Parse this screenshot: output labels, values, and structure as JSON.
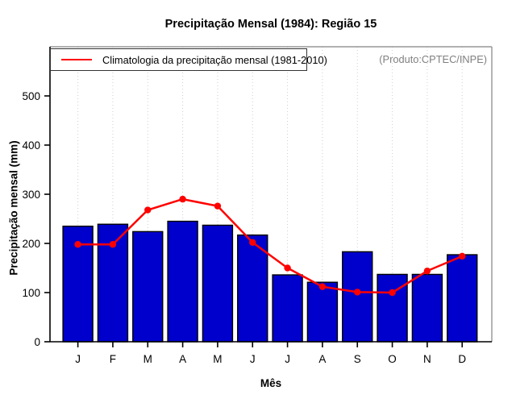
{
  "figure": {
    "annotation": "(Produto:CPTEC/INPE)"
  },
  "colors": {
    "bar_fill": "#0000CD",
    "bar_border": "#000000",
    "line": "#FF0000",
    "grid": "#CFCFCF",
    "box_border": "#828282",
    "axis": "#000000",
    "annotation_text": "#808080"
  },
  "chart_data": {
    "type": "bar",
    "title": "Precipitação Mensal (1984): Região 15",
    "xlabel": "Mês",
    "ylabel": "Precipitação mensal (mm)",
    "categories": [
      "J",
      "F",
      "M",
      "A",
      "M",
      "J",
      "J",
      "A",
      "S",
      "O",
      "N",
      "D"
    ],
    "yticks": [
      0,
      100,
      200,
      300,
      400,
      500
    ],
    "ylim": [
      0,
      600
    ],
    "grid": "vertical dotted gridlines at each month",
    "legend_position": "top-left inside plot",
    "annotation": "(Produto:CPTEC/INPE)",
    "series": [
      {
        "name": "Precipitação mensal (1984)",
        "type": "bar",
        "color": "#0000CD",
        "values": [
          235,
          239,
          224,
          245,
          237,
          217,
          136,
          121,
          183,
          137,
          137,
          177
        ]
      },
      {
        "name": "Climatologia da precipitação mensal (1981-2010)",
        "type": "line",
        "color": "#FF0000",
        "values": [
          198,
          198,
          268,
          290,
          276,
          202,
          150,
          112,
          101,
          100,
          144,
          174
        ]
      }
    ]
  }
}
